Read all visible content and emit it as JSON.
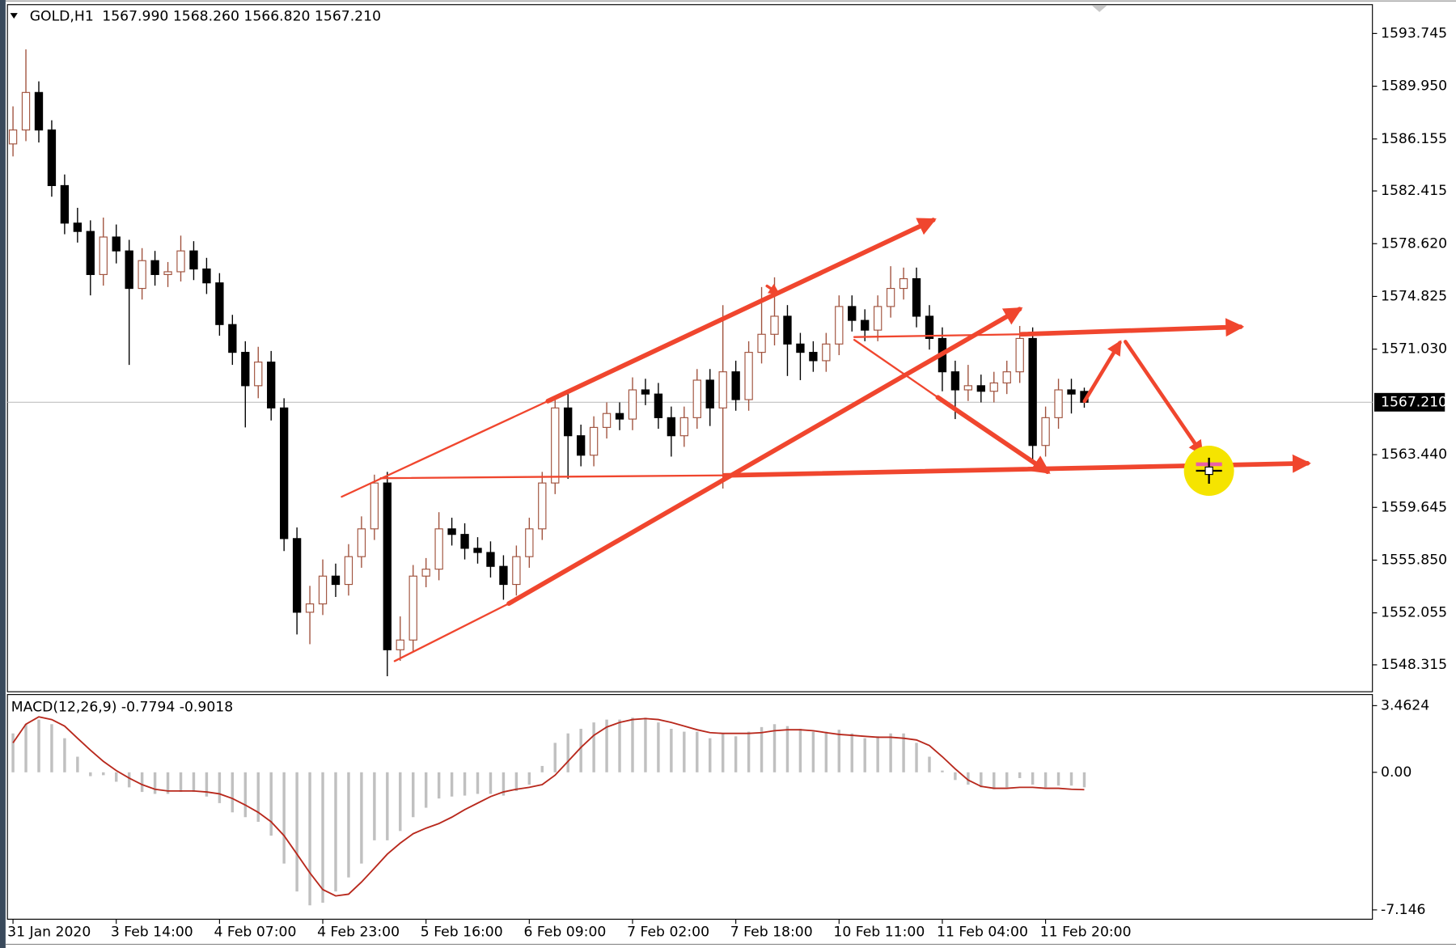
{
  "chart_data": [
    {
      "type": "candlestick",
      "title": "GOLD,H1",
      "subtitle": "1567.990 1568.260 1566.820 1567.210",
      "up_color": "#a0523d",
      "down_color": "#000000",
      "categories": [
        "31 Jan 2020",
        null,
        null,
        null,
        null,
        null,
        null,
        null,
        "3 Feb 14:00",
        null,
        null,
        null,
        null,
        null,
        null,
        null,
        "4 Feb 07:00",
        null,
        null,
        null,
        null,
        null,
        null,
        null,
        "4 Feb 23:00",
        null,
        null,
        null,
        null,
        null,
        null,
        null,
        "5 Feb 16:00",
        null,
        null,
        null,
        null,
        null,
        null,
        null,
        "6 Feb 09:00",
        null,
        null,
        null,
        null,
        null,
        null,
        null,
        "7 Feb 02:00",
        null,
        null,
        null,
        null,
        null,
        null,
        null,
        "7 Feb 18:00",
        null,
        null,
        null,
        null,
        null,
        null,
        null,
        "10 Feb 11:00",
        null,
        null,
        null,
        null,
        null,
        null,
        null,
        "11 Feb 04:00",
        null,
        null,
        null,
        null,
        null,
        null,
        null,
        "11 Feb 20:00",
        null,
        null,
        null
      ],
      "ohlc": [
        [
          1585.8,
          1588.5,
          1584.9,
          1586.8
        ],
        [
          1586.8,
          1592.6,
          1586.0,
          1589.5
        ],
        [
          1589.5,
          1590.3,
          1585.9,
          1586.8
        ],
        [
          1586.8,
          1587.5,
          1582.0,
          1582.8
        ],
        [
          1582.8,
          1583.6,
          1579.3,
          1580.1
        ],
        [
          1580.1,
          1581.2,
          1578.7,
          1579.5
        ],
        [
          1579.5,
          1580.3,
          1574.9,
          1576.4
        ],
        [
          1576.4,
          1580.5,
          1575.6,
          1579.1
        ],
        [
          1579.1,
          1580.0,
          1577.2,
          1578.1
        ],
        [
          1578.1,
          1578.9,
          1569.9,
          1575.4
        ],
        [
          1575.4,
          1578.3,
          1574.6,
          1577.4
        ],
        [
          1577.4,
          1578.1,
          1575.6,
          1576.4
        ],
        [
          1576.4,
          1577.3,
          1575.5,
          1576.6
        ],
        [
          1576.6,
          1579.2,
          1575.9,
          1578.1
        ],
        [
          1578.1,
          1578.8,
          1576.0,
          1576.8
        ],
        [
          1576.8,
          1577.6,
          1575.0,
          1575.8
        ],
        [
          1575.8,
          1576.5,
          1572.0,
          1572.8
        ],
        [
          1572.8,
          1573.5,
          1569.9,
          1570.8
        ],
        [
          1570.8,
          1571.6,
          1565.4,
          1568.4
        ],
        [
          1568.4,
          1571.2,
          1567.5,
          1570.1
        ],
        [
          1570.1,
          1570.9,
          1565.9,
          1566.8
        ],
        [
          1566.8,
          1567.5,
          1556.5,
          1557.4
        ],
        [
          1557.4,
          1558.2,
          1550.5,
          1552.1
        ],
        [
          1552.1,
          1554.0,
          1549.8,
          1552.7
        ],
        [
          1552.7,
          1555.9,
          1551.9,
          1554.7
        ],
        [
          1554.7,
          1555.6,
          1553.2,
          1554.1
        ],
        [
          1554.1,
          1557.0,
          1553.3,
          1556.1
        ],
        [
          1556.1,
          1559.0,
          1555.3,
          1558.1
        ],
        [
          1558.1,
          1562.0,
          1557.3,
          1561.4
        ],
        [
          1561.4,
          1562.2,
          1547.5,
          1549.4
        ],
        [
          1549.4,
          1551.8,
          1548.6,
          1550.1
        ],
        [
          1550.1,
          1555.5,
          1549.3,
          1554.7
        ],
        [
          1554.7,
          1556.0,
          1553.9,
          1555.2
        ],
        [
          1555.2,
          1559.3,
          1554.4,
          1558.1
        ],
        [
          1558.1,
          1558.9,
          1556.9,
          1557.7
        ],
        [
          1557.7,
          1558.5,
          1555.9,
          1556.7
        ],
        [
          1556.7,
          1557.5,
          1555.6,
          1556.4
        ],
        [
          1556.4,
          1557.2,
          1554.6,
          1555.4
        ],
        [
          1555.4,
          1556.2,
          1553.0,
          1554.1
        ],
        [
          1554.1,
          1556.9,
          1553.3,
          1556.1
        ],
        [
          1556.1,
          1558.9,
          1555.3,
          1558.1
        ],
        [
          1558.1,
          1562.2,
          1557.3,
          1561.4
        ],
        [
          1561.4,
          1567.6,
          1560.6,
          1566.8
        ],
        [
          1566.8,
          1567.8,
          1561.7,
          1564.8
        ],
        [
          1564.8,
          1565.6,
          1562.6,
          1563.4
        ],
        [
          1563.4,
          1566.2,
          1562.6,
          1565.4
        ],
        [
          1565.4,
          1567.2,
          1564.6,
          1566.4
        ],
        [
          1566.4,
          1567.2,
          1565.2,
          1566.0
        ],
        [
          1566.0,
          1569.0,
          1565.2,
          1568.1
        ],
        [
          1568.1,
          1568.9,
          1567.0,
          1567.8
        ],
        [
          1567.8,
          1568.6,
          1565.3,
          1566.1
        ],
        [
          1566.1,
          1566.9,
          1563.3,
          1564.8
        ],
        [
          1564.8,
          1566.9,
          1564.0,
          1566.1
        ],
        [
          1566.1,
          1569.6,
          1565.3,
          1568.8
        ],
        [
          1568.8,
          1569.6,
          1565.5,
          1566.8
        ],
        [
          1566.8,
          1574.2,
          1561.0,
          1569.4
        ],
        [
          1569.4,
          1570.2,
          1566.6,
          1567.4
        ],
        [
          1567.4,
          1571.6,
          1566.6,
          1570.8
        ],
        [
          1570.8,
          1575.5,
          1570.0,
          1572.1
        ],
        [
          1572.1,
          1576.2,
          1571.3,
          1573.4
        ],
        [
          1573.4,
          1574.2,
          1569.1,
          1571.4
        ],
        [
          1571.4,
          1572.2,
          1568.8,
          1570.8
        ],
        [
          1570.8,
          1571.6,
          1569.4,
          1570.2
        ],
        [
          1570.2,
          1572.2,
          1569.4,
          1571.4
        ],
        [
          1571.4,
          1574.9,
          1570.6,
          1574.1
        ],
        [
          1574.1,
          1574.9,
          1572.3,
          1573.1
        ],
        [
          1573.1,
          1573.9,
          1571.6,
          1572.4
        ],
        [
          1572.4,
          1574.9,
          1571.6,
          1574.1
        ],
        [
          1574.1,
          1577.0,
          1573.3,
          1575.4
        ],
        [
          1575.4,
          1576.9,
          1574.6,
          1576.1
        ],
        [
          1576.1,
          1576.9,
          1572.6,
          1573.4
        ],
        [
          1573.4,
          1574.2,
          1571.0,
          1571.8
        ],
        [
          1571.8,
          1572.6,
          1568.0,
          1569.4
        ],
        [
          1569.4,
          1570.2,
          1566.0,
          1568.1
        ],
        [
          1568.1,
          1569.9,
          1567.3,
          1568.4
        ],
        [
          1568.4,
          1569.2,
          1567.2,
          1568.0
        ],
        [
          1568.0,
          1569.4,
          1567.2,
          1568.6
        ],
        [
          1568.6,
          1570.2,
          1567.8,
          1569.4
        ],
        [
          1569.4,
          1572.7,
          1568.6,
          1571.8
        ],
        [
          1571.8,
          1572.6,
          1562.8,
          1564.1
        ],
        [
          1564.1,
          1566.9,
          1563.3,
          1566.1
        ],
        [
          1566.1,
          1568.9,
          1565.3,
          1568.1
        ],
        [
          1568.1,
          1568.9,
          1566.4,
          1567.8
        ],
        [
          1567.99,
          1568.26,
          1566.82,
          1567.21
        ]
      ],
      "ylim": [
        1546.38,
        1595.82
      ],
      "yticks": [
        1593.745,
        {
          "value": 1589.95,
          "label": "1589.950"
        },
        1586.155,
        1582.415,
        {
          "value": 1578.62,
          "label": "1578.620"
        },
        1574.825,
        {
          "value": 1571.03,
          "label": "1571.030"
        },
        {
          "value": 1563.44,
          "label": "1563.440"
        },
        1559.645,
        {
          "value": 1555.85,
          "label": "1555.850"
        },
        1552.055,
        1548.315
      ],
      "current_price": {
        "value": 1567.21,
        "label": "1567.210"
      }
    },
    {
      "type": "macd",
      "title": "MACD(12,26,9) -0.7794 -0.9018",
      "histogram": {
        "color": "#c0c0c0",
        "values": [
          2.02,
          2.5,
          2.74,
          2.5,
          1.77,
          0.81,
          -0.2,
          -0.15,
          -0.49,
          -0.78,
          -1.02,
          -1.12,
          -1.12,
          -1.02,
          -1.02,
          -1.26,
          -1.6,
          -2.08,
          -2.33,
          -2.57,
          -3.29,
          -4.74,
          -6.19,
          -6.91,
          -6.77,
          -6.19,
          -5.46,
          -4.74,
          -3.53,
          -3.53,
          -3.05,
          -2.33,
          -1.84,
          -1.36,
          -1.26,
          -1.21,
          -1.12,
          -1.12,
          -1.21,
          -0.97,
          -0.64,
          0.33,
          1.53,
          2.02,
          2.26,
          2.59,
          2.74,
          2.74,
          2.84,
          2.84,
          2.59,
          2.26,
          2.11,
          2.11,
          1.77,
          2.02,
          1.87,
          2.11,
          2.35,
          2.5,
          2.4,
          2.26,
          2.11,
          2.11,
          2.21,
          2.02,
          1.77,
          1.87,
          2.02,
          2.02,
          1.53,
          0.81,
          0.09,
          -0.4,
          -0.64,
          -0.78,
          -0.88,
          -0.78,
          -0.3,
          -0.64,
          -0.78,
          -0.69,
          -0.69,
          -0.7794
        ]
      },
      "signal": {
        "color": "#b8281c",
        "values": [
          1.53,
          2.5,
          2.88,
          2.74,
          2.4,
          1.77,
          1.15,
          0.57,
          0.09,
          -0.3,
          -0.64,
          -0.88,
          -0.97,
          -0.97,
          -0.97,
          -1.02,
          -1.12,
          -1.36,
          -1.7,
          -2.08,
          -2.57,
          -3.29,
          -4.25,
          -5.22,
          -6.09,
          -6.42,
          -6.33,
          -5.7,
          -4.98,
          -4.25,
          -3.68,
          -3.19,
          -2.9,
          -2.66,
          -2.33,
          -1.94,
          -1.6,
          -1.26,
          -1.02,
          -0.88,
          -0.78,
          -0.64,
          -0.15,
          0.57,
          1.29,
          1.92,
          2.35,
          2.59,
          2.74,
          2.79,
          2.74,
          2.59,
          2.4,
          2.21,
          2.06,
          2.02,
          2.02,
          2.02,
          2.06,
          2.16,
          2.21,
          2.21,
          2.16,
          2.06,
          1.97,
          1.92,
          1.87,
          1.82,
          1.82,
          1.77,
          1.68,
          1.39,
          0.81,
          0.18,
          -0.4,
          -0.73,
          -0.83,
          -0.83,
          -0.78,
          -0.78,
          -0.83,
          -0.83,
          -0.88,
          -0.9018
        ]
      },
      "ylim": [
        -7.63,
        4.04
      ],
      "yticks": [
        3.4624,
        {
          "value": 0,
          "label": "0.00"
        },
        -7.146
      ]
    }
  ]
}
